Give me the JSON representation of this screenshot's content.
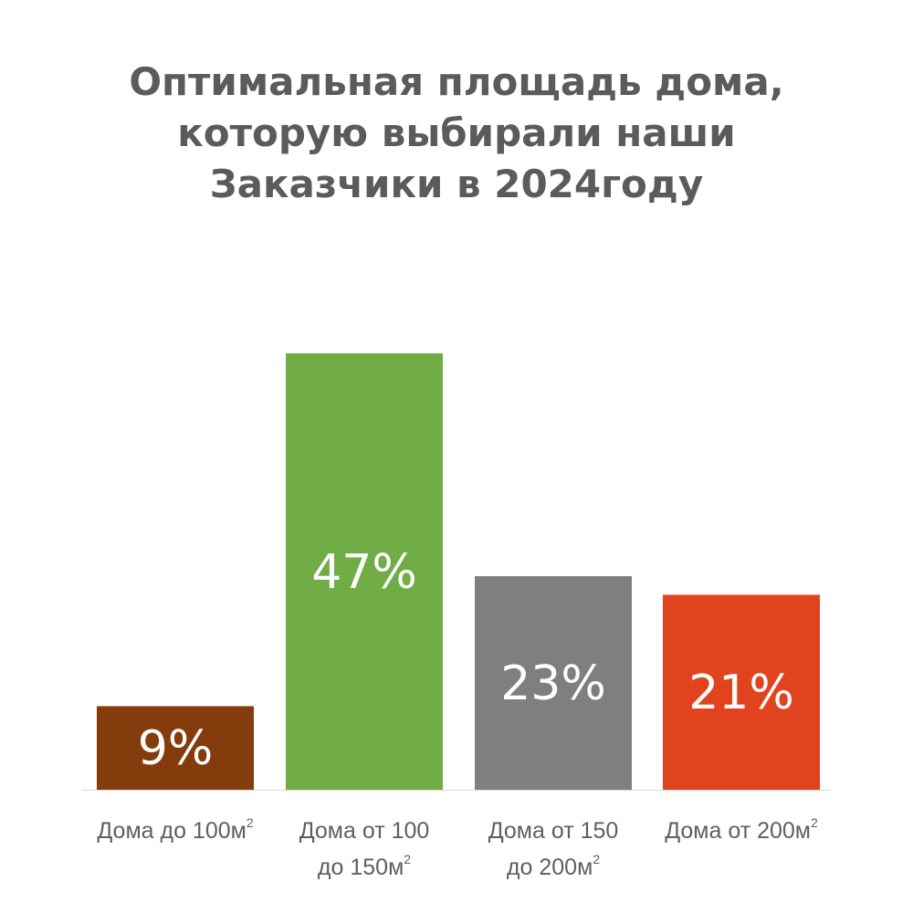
{
  "chart_data": {
    "type": "bar",
    "title_lines": [
      "Оптимальная площадь дома,",
      "которую выбирали наши",
      "Заказчики в 2024году"
    ],
    "categories": [
      {
        "lines": [
          "Дома до 100м²"
        ],
        "color": "#843c0c"
      },
      {
        "lines": [
          "Дома от 100",
          "до 150м²"
        ],
        "color": "#70ad47"
      },
      {
        "lines": [
          "Дома от 150",
          "до 200м²"
        ],
        "color": "#7f7f7f"
      },
      {
        "lines": [
          "Дома от 200м²"
        ],
        "color": "#e2431f"
      }
    ],
    "values": [
      9,
      47,
      23,
      21
    ],
    "value_labels": [
      "9%",
      "47%",
      "23%",
      "21%"
    ],
    "ylim": [
      0,
      47
    ],
    "grid": false,
    "legend": "none",
    "baseline_color": "#d9d9d9"
  }
}
